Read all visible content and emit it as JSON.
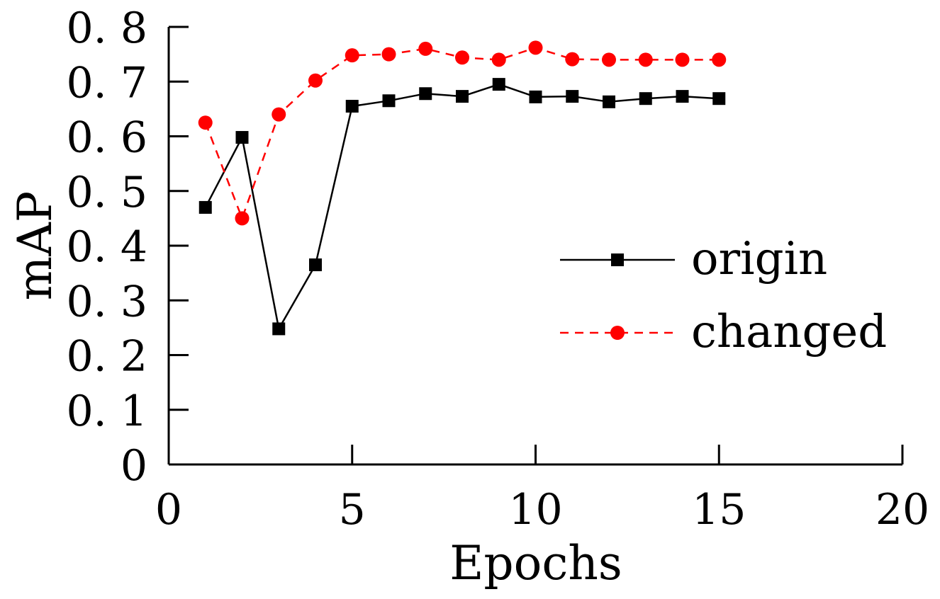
{
  "chart_data": {
    "type": "line",
    "title": "",
    "xlabel": "Epochs",
    "ylabel": "mAP",
    "xlim": [
      0,
      20
    ],
    "ylim": [
      0,
      0.8
    ],
    "xticks": [
      0,
      5,
      10,
      15,
      20
    ],
    "xtick_labels": [
      "0",
      "5",
      "10",
      "15",
      "20"
    ],
    "yticks": [
      0,
      0.1,
      0.2,
      0.3,
      0.4,
      0.5,
      0.6,
      0.7,
      0.8
    ],
    "ytick_labels": [
      "0",
      "0. 1",
      "0. 2",
      "0. 3",
      "0. 4",
      "0. 5",
      "0. 6",
      "0. 7",
      "0. 8"
    ],
    "grid": false,
    "legend_position": "right",
    "x": [
      1,
      2,
      3,
      4,
      5,
      6,
      7,
      8,
      9,
      10,
      11,
      12,
      13,
      14,
      15
    ],
    "series": [
      {
        "name": "origin",
        "color": "#000000",
        "line": "solid",
        "marker": "square",
        "values": [
          0.47,
          0.598,
          0.248,
          0.365,
          0.655,
          0.665,
          0.678,
          0.673,
          0.695,
          0.672,
          0.673,
          0.663,
          0.669,
          0.673,
          0.669
        ]
      },
      {
        "name": "changed",
        "color": "#ff0000",
        "line": "dashed",
        "marker": "circle",
        "values": [
          0.625,
          0.45,
          0.64,
          0.702,
          0.748,
          0.75,
          0.76,
          0.744,
          0.74,
          0.762,
          0.741,
          0.74,
          0.74,
          0.74,
          0.74
        ]
      }
    ]
  }
}
